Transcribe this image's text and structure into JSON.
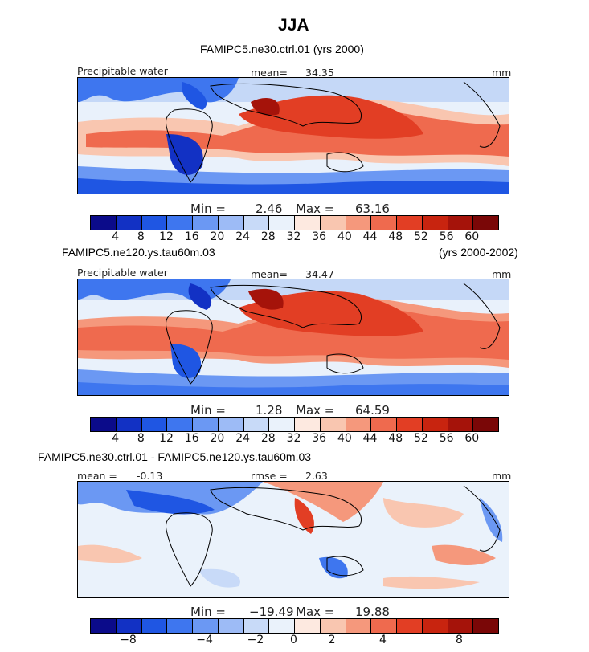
{
  "page_title": "JJA",
  "palette_abs": [
    "#0b0b8a",
    "#1231c4",
    "#1f56e3",
    "#3e76ef",
    "#6b98f3",
    "#9dbbf6",
    "#c8daf8",
    "#eaf2fb",
    "#fde9e0",
    "#f9c6b0",
    "#f5987c",
    "#ef6a4e",
    "#e23e24",
    "#c8240f",
    "#a5130a",
    "#7a0707"
  ],
  "palette_diff": [
    "#0b0b8a",
    "#1231c4",
    "#1f56e3",
    "#3e76ef",
    "#6b98f3",
    "#9dbbf6",
    "#c8daf8",
    "#eaf2fb",
    "#fde9e0",
    "#f9c6b0",
    "#f5987c",
    "#ef6a4e",
    "#e23e24",
    "#c8240f",
    "#a5130a",
    "#7a0707"
  ],
  "chart_data": [
    {
      "type": "heatmap",
      "title": "FAMIPC5.ne30.ctrl.01 (yrs 2000)",
      "variable": "Precipitable water",
      "units": "mm",
      "mean_label": "mean=",
      "mean": "34.35",
      "min_label": "Min =",
      "min": "2.46",
      "max_label": "Max =",
      "max": "63.16",
      "colorbar_ticks": [
        "4",
        "8",
        "12",
        "16",
        "20",
        "24",
        "28",
        "32",
        "36",
        "40",
        "44",
        "48",
        "52",
        "56",
        "60"
      ]
    },
    {
      "type": "heatmap",
      "title": "FAMIPC5.ne120.ys.tau60m.03",
      "years": "(yrs 2000-2002)",
      "variable": "Precipitable water",
      "units": "mm",
      "mean_label": "mean=",
      "mean": "34.47",
      "min_label": "Min =",
      "min": "1.28",
      "max_label": "Max =",
      "max": "64.59",
      "colorbar_ticks": [
        "4",
        "8",
        "12",
        "16",
        "20",
        "24",
        "28",
        "32",
        "36",
        "40",
        "44",
        "48",
        "52",
        "56",
        "60"
      ]
    },
    {
      "type": "heatmap",
      "title": "FAMIPC5.ne30.ctrl.01 - FAMIPC5.ne120.ys.tau60m.03",
      "units": "mm",
      "mean_label": "mean =",
      "mean": "-0.13",
      "rmse_label": "rmse =",
      "rmse": "2.63",
      "min_label": "Min =",
      "min": "−19.49",
      "max_label": "Max =",
      "max": "19.88",
      "colorbar_ticks": [
        "−8",
        "−4",
        "−2",
        "0",
        "2",
        "4",
        "8"
      ]
    }
  ]
}
